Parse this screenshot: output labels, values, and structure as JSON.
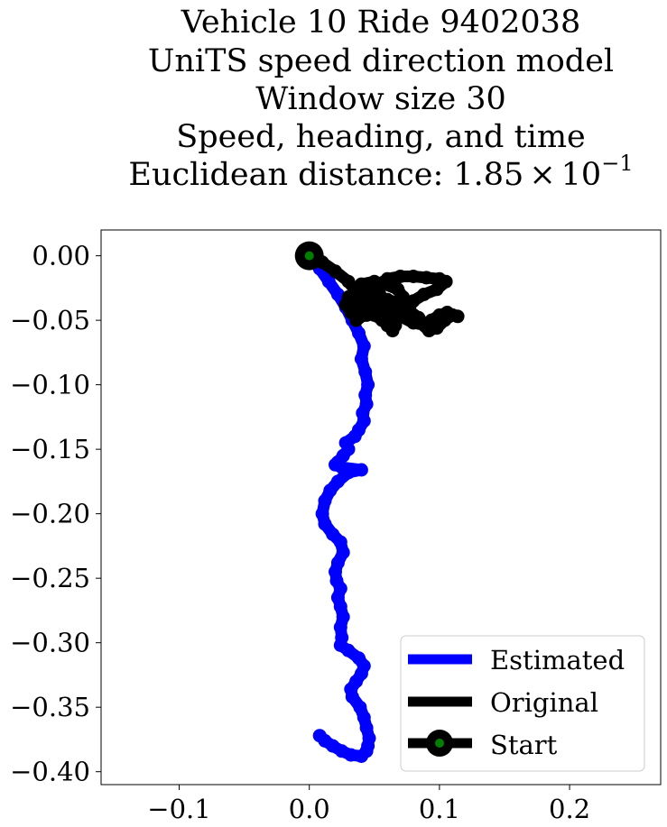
{
  "chart_data": {
    "type": "line",
    "title_lines": [
      "Vehicle 10 Ride 9402038",
      "UniTS speed direction model",
      "Window size 30",
      "Speed, heading, and time"
    ],
    "title_metric_prefix": "Euclidean distance: 1.85",
    "title_metric_times": "×",
    "title_metric_base": "10",
    "title_metric_exp": "−1",
    "xlim": [
      -0.16,
      0.27
    ],
    "ylim": [
      -0.41,
      0.02
    ],
    "x_ticks": [
      -0.1,
      0.0,
      0.1,
      0.2
    ],
    "x_tick_labels": [
      "−0.1",
      "0.0",
      "0.1",
      "0.2"
    ],
    "y_ticks": [
      0.0,
      -0.05,
      -0.1,
      -0.15,
      -0.2,
      -0.25,
      -0.3,
      -0.35,
      -0.4
    ],
    "y_tick_labels": [
      "0.00",
      "−0.05",
      "−0.10",
      "−0.15",
      "−0.20",
      "−0.25",
      "−0.30",
      "−0.35",
      "−0.40"
    ],
    "legend_position": "lower-right",
    "series": [
      {
        "name": "Estimated",
        "color": "#0000ff",
        "x": [
          0.0,
          0.008,
          0.015,
          0.022,
          0.028,
          0.033,
          0.038,
          0.042,
          0.04,
          0.043,
          0.045,
          0.043,
          0.044,
          0.041,
          0.042,
          0.038,
          0.035,
          0.028,
          0.03,
          0.026,
          0.022,
          0.02,
          0.025,
          0.04,
          0.03,
          0.022,
          0.016,
          0.012,
          0.01,
          0.012,
          0.018,
          0.024,
          0.026,
          0.022,
          0.02,
          0.021,
          0.024,
          0.022,
          0.024,
          0.026,
          0.024,
          0.025,
          0.024,
          0.03,
          0.038,
          0.042,
          0.04,
          0.036,
          0.032,
          0.033,
          0.039,
          0.042,
          0.044,
          0.046,
          0.045,
          0.044,
          0.04,
          0.032,
          0.025,
          0.018,
          0.012,
          0.008
        ],
        "y": [
          0.0,
          -0.01,
          -0.02,
          -0.03,
          -0.04,
          -0.05,
          -0.06,
          -0.07,
          -0.08,
          -0.09,
          -0.1,
          -0.108,
          -0.115,
          -0.122,
          -0.128,
          -0.135,
          -0.14,
          -0.145,
          -0.15,
          -0.155,
          -0.16,
          -0.162,
          -0.164,
          -0.166,
          -0.168,
          -0.175,
          -0.182,
          -0.19,
          -0.2,
          -0.208,
          -0.216,
          -0.222,
          -0.23,
          -0.238,
          -0.245,
          -0.252,
          -0.258,
          -0.265,
          -0.272,
          -0.28,
          -0.288,
          -0.296,
          -0.302,
          -0.306,
          -0.312,
          -0.318,
          -0.324,
          -0.33,
          -0.336,
          -0.342,
          -0.35,
          -0.358,
          -0.366,
          -0.374,
          -0.38,
          -0.384,
          -0.388,
          -0.387,
          -0.384,
          -0.38,
          -0.376,
          -0.372
        ]
      },
      {
        "name": "Original",
        "color": "#000000",
        "x": [
          0.0,
          0.01,
          0.02,
          0.03,
          0.036,
          0.032,
          0.04,
          0.05,
          0.06,
          0.07,
          0.08,
          0.09,
          0.1,
          0.105,
          0.098,
          0.088,
          0.08,
          0.076,
          0.084,
          0.09,
          0.08,
          0.07,
          0.062,
          0.066,
          0.072,
          0.068,
          0.058,
          0.05,
          0.04,
          0.035,
          0.03,
          0.036,
          0.044,
          0.05,
          0.056,
          0.06,
          0.064,
          0.066,
          0.062,
          0.055,
          0.048,
          0.052,
          0.06,
          0.07,
          0.08,
          0.09,
          0.098,
          0.104,
          0.11,
          0.114,
          0.106,
          0.1,
          0.094,
          0.096,
          0.092,
          0.085,
          0.078,
          0.072,
          0.066,
          0.06,
          0.052,
          0.046,
          0.04,
          0.036,
          0.034,
          0.038,
          0.044,
          0.05,
          0.054,
          0.058,
          0.052,
          0.044,
          0.038,
          0.032,
          0.028,
          0.03,
          0.036,
          0.042,
          0.04,
          0.034
        ],
        "y": [
          0.0,
          -0.005,
          -0.012,
          -0.02,
          -0.028,
          -0.036,
          -0.032,
          -0.024,
          -0.018,
          -0.016,
          -0.016,
          -0.017,
          -0.018,
          -0.02,
          -0.026,
          -0.03,
          -0.035,
          -0.042,
          -0.048,
          -0.054,
          -0.052,
          -0.047,
          -0.043,
          -0.038,
          -0.032,
          -0.026,
          -0.022,
          -0.02,
          -0.022,
          -0.028,
          -0.034,
          -0.04,
          -0.044,
          -0.046,
          -0.05,
          -0.054,
          -0.058,
          -0.054,
          -0.048,
          -0.044,
          -0.04,
          -0.036,
          -0.038,
          -0.042,
          -0.048,
          -0.054,
          -0.056,
          -0.05,
          -0.046,
          -0.047,
          -0.044,
          -0.046,
          -0.05,
          -0.056,
          -0.058,
          -0.052,
          -0.046,
          -0.04,
          -0.036,
          -0.034,
          -0.036,
          -0.04,
          -0.046,
          -0.05,
          -0.044,
          -0.036,
          -0.03,
          -0.026,
          -0.03,
          -0.036,
          -0.042,
          -0.046,
          -0.048,
          -0.044,
          -0.038,
          -0.032,
          -0.028,
          -0.03,
          -0.036,
          -0.04
        ]
      },
      {
        "name": "Start",
        "color": "#000000",
        "marker_fill": "#008000",
        "x": [
          0.0
        ],
        "y": [
          0.0
        ]
      }
    ]
  }
}
